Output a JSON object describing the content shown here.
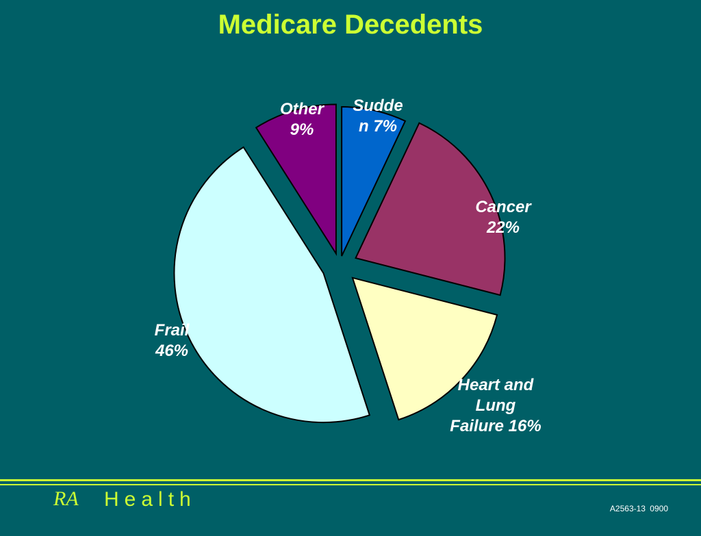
{
  "chart_data": {
    "type": "pie",
    "title": "Medicare Decedents",
    "slices": [
      {
        "name": "Sudden",
        "value": 7,
        "label_lines": [
          "Sudde",
          "n 7%"
        ],
        "color": "#0066cc"
      },
      {
        "name": "Cancer",
        "value": 22,
        "label_lines": [
          "Cancer",
          "22%"
        ],
        "color": "#993366"
      },
      {
        "name": "Heart and Lung Failure",
        "value": 16,
        "label_lines": [
          "Heart and",
          "Lung",
          "Failure 16%"
        ],
        "color": "#ffffc2"
      },
      {
        "name": "Frail",
        "value": 46,
        "label_lines": [
          "Frail",
          "46%"
        ],
        "color": "#ccffff"
      },
      {
        "name": "Other",
        "value": 9,
        "label_lines": [
          "Other",
          "9%"
        ],
        "color": "#800080"
      }
    ],
    "exploded": true,
    "legend": "none"
  },
  "footer": {
    "brand_prefix": "RA",
    "brand_name": "Health",
    "code": "A2563-13 0900"
  },
  "colors": {
    "background": "#005f66",
    "accent": "#ccff33"
  }
}
